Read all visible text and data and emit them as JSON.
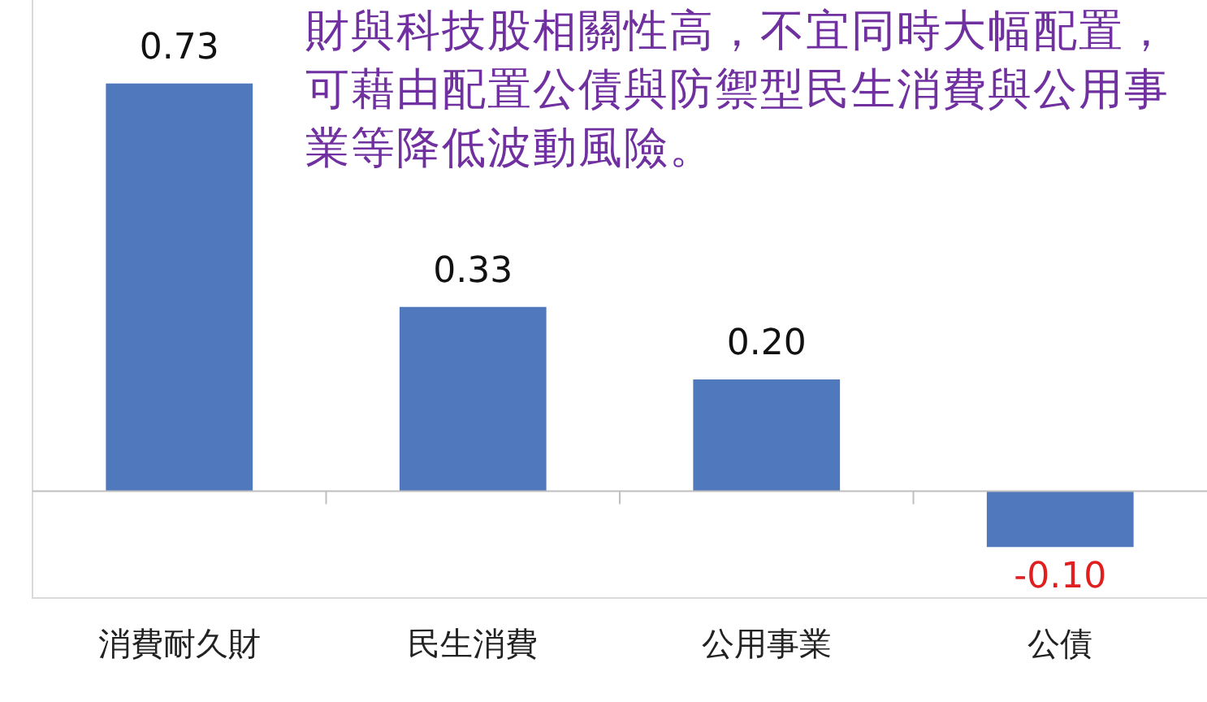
{
  "chart_data": {
    "type": "bar",
    "categories": [
      "消費耐久財",
      "民生消費",
      "公用事業",
      "公債"
    ],
    "values": [
      0.73,
      0.33,
      0.2,
      -0.1
    ],
    "color": "#4f78bd",
    "data_labels": true,
    "value_labels": [
      "0.73",
      "0.33",
      "0.20",
      "-0.10"
    ],
    "grid": false,
    "legend": false,
    "annotations": [
      "財與科技股相關性高，不宜同時大幅配置，可藉由配置公債與防禦型民生消費與公用事業等降低波動風險。"
    ]
  }
}
